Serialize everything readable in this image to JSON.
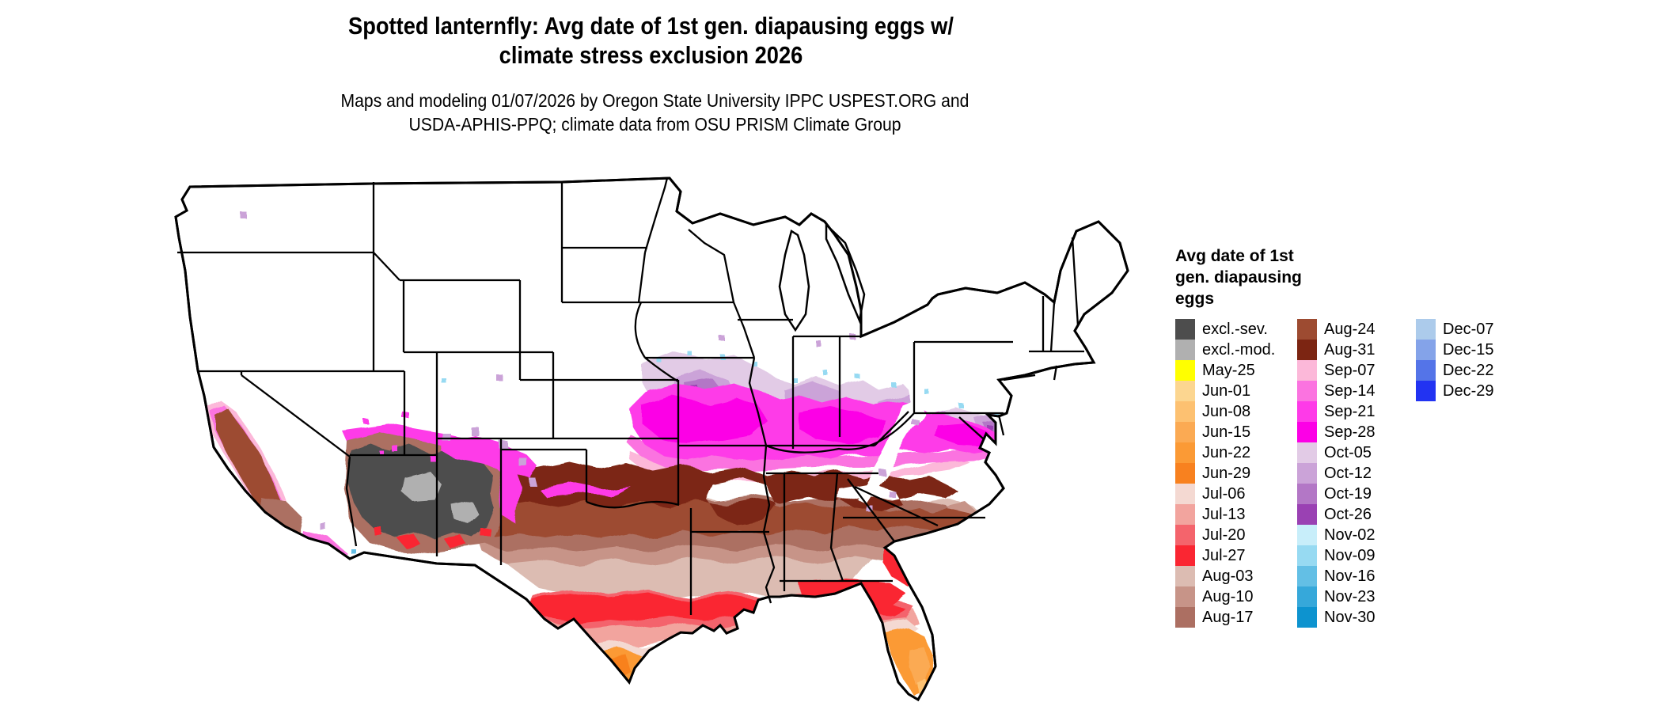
{
  "title": {
    "line1": "Spotted lanternfly: Avg date of 1st gen. diapausing eggs w/",
    "line2": "climate stress exclusion 2026"
  },
  "subtitle": {
    "line1": "Maps and modeling 01/07/2026 by Oregon State University IPPC USPEST.ORG and",
    "line2": "USDA-APHIS-PPQ; climate data from OSU PRISM Climate Group"
  },
  "legend": {
    "title_lines": [
      "Avg date of 1st",
      "gen. diapausing",
      "eggs"
    ],
    "colors": {
      "excl_sev": "#4d4d4d",
      "excl_mod": "#b0b0b0",
      "may25": "#ffff00",
      "jun01": "#fcd690",
      "jun08": "#fdc171",
      "jun15": "#fbaa53",
      "jun22": "#fb9a35",
      "jun29": "#f8811f",
      "jul06": "#f4d9d2",
      "jul13": "#f2a49e",
      "jul20": "#f4646c",
      "jul27": "#fa2632",
      "aug03": "#dcbcb2",
      "aug10": "#c79488",
      "aug17": "#ac6f62",
      "aug24": "#9d4b31",
      "aug31": "#7c2512",
      "sep07": "#fcb8d9",
      "sep14": "#fb73e0",
      "sep21": "#fe3ae8",
      "sep28": "#fc00e6",
      "oct05": "#e2cbe6",
      "oct12": "#cba3d8",
      "oct19": "#b377c6",
      "oct26": "#9a41b3",
      "nov02": "#c8eefa",
      "nov09": "#97daf2",
      "nov16": "#63bfe5",
      "nov23": "#36a8da",
      "nov30": "#0d93cf",
      "dec07": "#accbeb",
      "dec15": "#84a3e9",
      "dec22": "#5474e8",
      "dec29": "#2233f2",
      "map_outline": "#000000",
      "map_bg": "#ffffff"
    },
    "columns": [
      [
        {
          "key": "excl_sev",
          "label": "excl.-sev."
        },
        {
          "key": "excl_mod",
          "label": "excl.-mod."
        },
        {
          "key": "may25",
          "label": "May-25"
        },
        {
          "key": "jun01",
          "label": "Jun-01"
        },
        {
          "key": "jun08",
          "label": "Jun-08"
        },
        {
          "key": "jun15",
          "label": "Jun-15"
        },
        {
          "key": "jun22",
          "label": "Jun-22"
        },
        {
          "key": "jun29",
          "label": "Jun-29"
        },
        {
          "key": "jul06",
          "label": "Jul-06"
        },
        {
          "key": "jul13",
          "label": "Jul-13"
        },
        {
          "key": "jul20",
          "label": "Jul-20"
        },
        {
          "key": "jul27",
          "label": "Jul-27"
        },
        {
          "key": "aug03",
          "label": "Aug-03"
        },
        {
          "key": "aug10",
          "label": "Aug-10"
        },
        {
          "key": "aug17",
          "label": "Aug-17"
        }
      ],
      [
        {
          "key": "aug24",
          "label": "Aug-24"
        },
        {
          "key": "aug31",
          "label": "Aug-31"
        },
        {
          "key": "sep07",
          "label": "Sep-07"
        },
        {
          "key": "sep14",
          "label": "Sep-14"
        },
        {
          "key": "sep21",
          "label": "Sep-21"
        },
        {
          "key": "sep28",
          "label": "Sep-28"
        },
        {
          "key": "oct05",
          "label": "Oct-05"
        },
        {
          "key": "oct12",
          "label": "Oct-12"
        },
        {
          "key": "oct19",
          "label": "Oct-19"
        },
        {
          "key": "oct26",
          "label": "Oct-26"
        },
        {
          "key": "nov02",
          "label": "Nov-02"
        },
        {
          "key": "nov09",
          "label": "Nov-09"
        },
        {
          "key": "nov16",
          "label": "Nov-16"
        },
        {
          "key": "nov23",
          "label": "Nov-23"
        },
        {
          "key": "nov30",
          "label": "Nov-30"
        }
      ],
      [
        {
          "key": "dec07",
          "label": "Dec-07"
        },
        {
          "key": "dec15",
          "label": "Dec-15"
        },
        {
          "key": "dec22",
          "label": "Dec-22"
        },
        {
          "key": "dec29",
          "label": "Dec-29"
        }
      ]
    ]
  }
}
